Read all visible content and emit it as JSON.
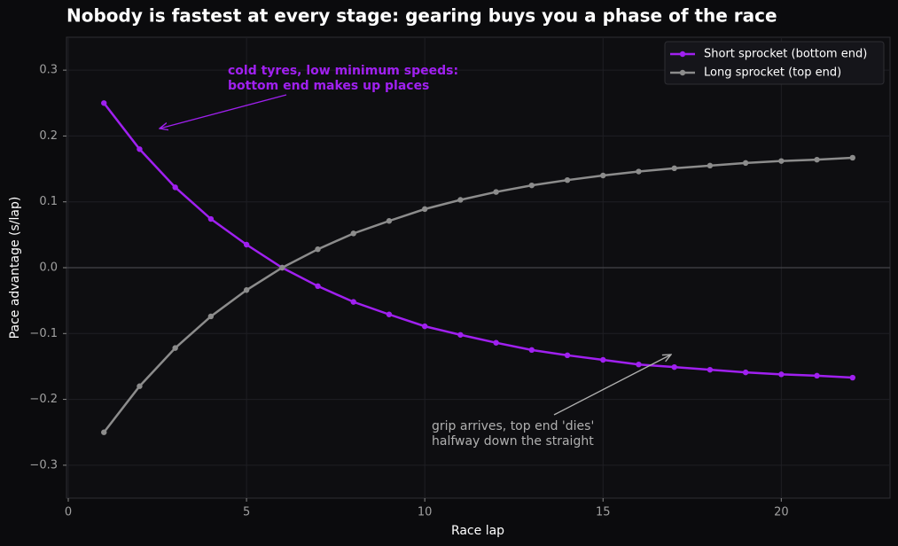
{
  "chart_data": {
    "type": "line",
    "title": "Nobody is fastest at every stage: gearing buys you a phase of the race",
    "xlabel": "Race lap",
    "ylabel": "Pace advantage (s/lap)",
    "x": [
      1,
      2,
      3,
      4,
      5,
      6,
      7,
      8,
      9,
      10,
      11,
      12,
      13,
      14,
      15,
      16,
      17,
      18,
      19,
      20,
      21,
      22
    ],
    "series": [
      {
        "name": "Short sprocket (bottom end)",
        "color": "#a020f0",
        "values": [
          0.25,
          0.18,
          0.122,
          0.074,
          0.035,
          0,
          -0.028,
          -0.052,
          -0.071,
          -0.089,
          -0.102,
          -0.114,
          -0.125,
          -0.133,
          -0.14,
          -0.147,
          -0.151,
          -0.155,
          -0.159,
          -0.162,
          -0.164,
          -0.167
        ]
      },
      {
        "name": "Long sprocket (top end)",
        "color": "#8c8c8c",
        "values": [
          -0.25,
          -0.18,
          -0.122,
          -0.074,
          -0.034,
          0,
          0.028,
          0.052,
          0.071,
          0.089,
          0.103,
          0.115,
          0.125,
          0.133,
          0.14,
          0.146,
          0.151,
          0.155,
          0.159,
          0.162,
          0.164,
          0.167
        ]
      }
    ],
    "xlim": [
      -0.05,
      23.05
    ],
    "ylim": [
      -0.35,
      0.35
    ],
    "xticks": [
      0,
      5,
      10,
      15,
      20
    ],
    "yticks": [
      {
        "value": -0.3,
        "label": "−0.3"
      },
      {
        "value": -0.2,
        "label": "−0.2"
      },
      {
        "value": -0.1,
        "label": "−0.1"
      },
      {
        "value": 0,
        "label": "0.0"
      },
      0.1,
      0.2,
      0.3
    ],
    "hlines": [
      0
    ],
    "grid": true,
    "legend": "upper right",
    "annotations": [
      {
        "text": [
          "cold tyres, low minimum speeds:",
          "bottom end makes up places"
        ],
        "color": "#a020f0"
      },
      {
        "text": [
          "grip arrives, top end 'dies'",
          "halfway down the straight"
        ],
        "color": "#b0b0b0"
      }
    ]
  }
}
